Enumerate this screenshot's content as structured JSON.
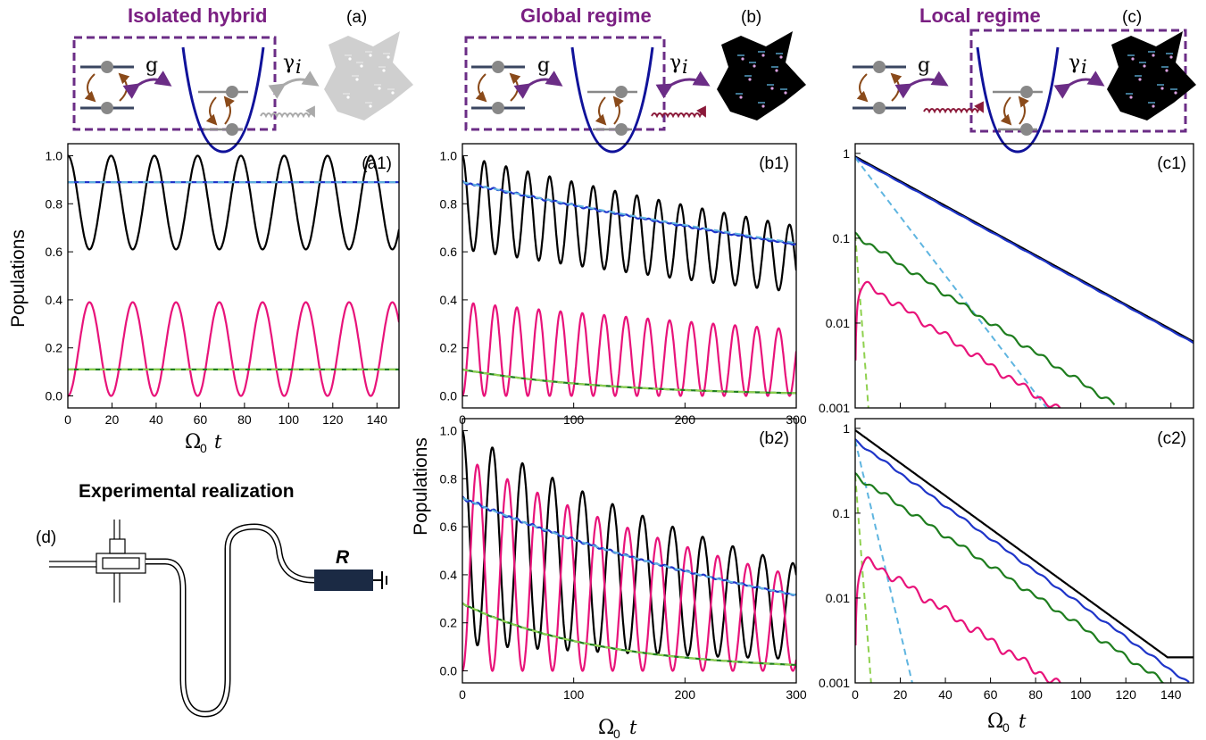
{
  "titles": {
    "a": "Isolated hybrid",
    "b": "Global regime",
    "c": "Local regime",
    "d": "Experimental realization"
  },
  "panel_labels": {
    "a": "(a)",
    "b": "(b)",
    "c": "(c)",
    "d": "(d)"
  },
  "schematic": {
    "coupling": "g",
    "gamma": "γ",
    "gamma_sub": "i",
    "resistor": "R"
  },
  "axis": {
    "populations": "Populations",
    "omega": "Ω",
    "omega_sub": "0",
    "t": "t"
  },
  "colors": {
    "black": "#000000",
    "blue": "#1f35c9",
    "lightblue": "#5fb5e0",
    "green": "#1e7d1e",
    "lightgreen": "#8fd14f",
    "pink": "#e8137a",
    "purple": "#6b2d86",
    "title": "#7a1f82"
  },
  "chart_data": [
    {
      "id": "a1",
      "label": "(a1)",
      "type": "line",
      "x_range": [
        0,
        150
      ],
      "y_range": [
        -0.05,
        1.05
      ],
      "y_scale": "linear",
      "x_ticks": [
        "0",
        "20",
        "40",
        "60",
        "80",
        "100",
        "120",
        "140"
      ],
      "y_ticks": [
        "0.0",
        "0.2",
        "0.4",
        "0.6",
        "0.8",
        "1.0"
      ],
      "xlabel": "Ω0 t",
      "ylabel": "Populations",
      "series": [
        {
          "color": "black",
          "kind": "oscillation",
          "period": 19.6,
          "mean": 0.805,
          "amp": 0.195,
          "phase": "cos",
          "decay": 0
        },
        {
          "color": "pink",
          "kind": "oscillation",
          "period": 19.6,
          "mean": 0.195,
          "amp": 0.195,
          "phase": "-cos",
          "decay": 0
        },
        {
          "color": "blue",
          "kind": "flat",
          "value": 0.89
        },
        {
          "color": "lightblue",
          "kind": "flat",
          "value": 0.89,
          "dashed": true
        },
        {
          "color": "green",
          "kind": "flat",
          "value": 0.11
        },
        {
          "color": "lightgreen",
          "kind": "flat",
          "value": 0.11,
          "dashed": true
        }
      ]
    },
    {
      "id": "b1",
      "label": "(b1)",
      "type": "line",
      "x_range": [
        0,
        300
      ],
      "y_range": [
        -0.05,
        1.05
      ],
      "y_scale": "linear",
      "x_ticks": [
        "0",
        "100",
        "200",
        "300"
      ],
      "y_ticks": [
        "0.0",
        "0.2",
        "0.4",
        "0.6",
        "0.8",
        "1.0"
      ],
      "ylabel": "Populations",
      "series": [
        {
          "color": "black",
          "kind": "oscillation",
          "period": 19.6,
          "mean": 0.805,
          "amp": 0.195,
          "phase": "cos",
          "decay": 0.00115
        },
        {
          "color": "pink",
          "kind": "oscillation",
          "period": 19.6,
          "mean": 0.195,
          "amp": 0.195,
          "phase": "-cos",
          "decay": 0.00115
        },
        {
          "color": "blue",
          "kind": "exp",
          "start": 0.89,
          "rate": 0.00115,
          "noise": 0.006
        },
        {
          "color": "lightblue",
          "kind": "exp",
          "start": 0.89,
          "rate": 0.00112,
          "dashed": true
        },
        {
          "color": "green",
          "kind": "exp",
          "start": 0.11,
          "rate": 0.0075,
          "noise": 0.004
        },
        {
          "color": "lightgreen",
          "kind": "exp",
          "start": 0.11,
          "rate": 0.0075,
          "dashed": true
        }
      ]
    },
    {
      "id": "b2",
      "label": "(b2)",
      "type": "line",
      "x_range": [
        0,
        300
      ],
      "y_range": [
        -0.05,
        1.05
      ],
      "y_scale": "linear",
      "x_ticks": [
        "0",
        "100",
        "200",
        "300"
      ],
      "y_ticks": [
        "0.0",
        "0.2",
        "0.4",
        "0.6",
        "0.8",
        "1.0"
      ],
      "xlabel": "Ω0 t",
      "ylabel": "Populations",
      "series": [
        {
          "color": "black",
          "kind": "oscillation",
          "period": 27,
          "mean": 0.555,
          "amp": 0.445,
          "phase": "cos",
          "decay": 0.0027
        },
        {
          "color": "pink",
          "kind": "oscillation",
          "period": 27,
          "mean": 0.445,
          "amp": 0.445,
          "phase": "-cos",
          "decay": 0.0027
        },
        {
          "color": "blue",
          "kind": "exp",
          "start": 0.72,
          "rate": 0.00275,
          "noise": 0.01
        },
        {
          "color": "lightblue",
          "kind": "exp",
          "start": 0.72,
          "rate": 0.00275,
          "dashed": true
        },
        {
          "color": "green",
          "kind": "exp",
          "start": 0.28,
          "rate": 0.0081,
          "noise": 0.006
        },
        {
          "color": "lightgreen",
          "kind": "exp",
          "start": 0.28,
          "rate": 0.0081,
          "dashed": true
        }
      ]
    },
    {
      "id": "c1",
      "label": "(c1)",
      "type": "line",
      "x_range": [
        0,
        150
      ],
      "y_range": [
        0.001,
        1.3
      ],
      "y_scale": "log",
      "x_ticks": [],
      "y_ticks": [
        "0.001",
        "0.01",
        "0.1",
        "1"
      ],
      "ylabel": "",
      "series": [
        {
          "color": "black",
          "kind": "exp",
          "start": 0.92,
          "rate": 0.0335
        },
        {
          "color": "blue",
          "kind": "exp",
          "start": 0.89,
          "rate": 0.0335,
          "noise": 0.01
        },
        {
          "color": "lightblue",
          "kind": "exp",
          "start": 0.89,
          "rate": 0.08,
          "dashed": true
        },
        {
          "color": "green",
          "kind": "exp",
          "start": 0.11,
          "rate": 0.04,
          "noise": 0.08,
          "cutoff": 115
        },
        {
          "color": "lightgreen",
          "kind": "exp",
          "start": 0.11,
          "rate": 0.8,
          "dashed": true
        },
        {
          "color": "pink",
          "kind": "risefall",
          "peak": 0.035,
          "rise": 1.5,
          "rate": 0.04,
          "noise": 0.12,
          "cutoff": 100
        }
      ]
    },
    {
      "id": "c2",
      "label": "(c2)",
      "type": "line",
      "x_range": [
        0,
        150
      ],
      "y_range": [
        0.001,
        1.3
      ],
      "y_scale": "log",
      "x_ticks": [
        "0",
        "20",
        "40",
        "60",
        "80",
        "100",
        "120",
        "140"
      ],
      "y_ticks": [
        "0.001",
        "0.01",
        "0.1",
        "1"
      ],
      "xlabel": "Ω0 t",
      "ylabel": "",
      "series": [
        {
          "color": "black",
          "kind": "exp",
          "start": 0.95,
          "rate": 0.0445,
          "floor": 0.002
        },
        {
          "color": "blue",
          "kind": "exp",
          "start": 0.72,
          "rate": 0.0445,
          "noise": 0.04,
          "cutoff": 148
        },
        {
          "color": "lightblue",
          "kind": "exp",
          "start": 0.72,
          "rate": 0.26,
          "dashed": true
        },
        {
          "color": "green",
          "kind": "exp",
          "start": 0.28,
          "rate": 0.041,
          "noise": 0.08,
          "cutoff": 150
        },
        {
          "color": "lightgreen",
          "kind": "exp",
          "start": 0.28,
          "rate": 0.8,
          "dashed": true
        },
        {
          "color": "pink",
          "kind": "risefall",
          "peak": 0.035,
          "rise": 2,
          "rate": 0.04,
          "noise": 0.15,
          "cutoff": 95
        }
      ]
    }
  ]
}
